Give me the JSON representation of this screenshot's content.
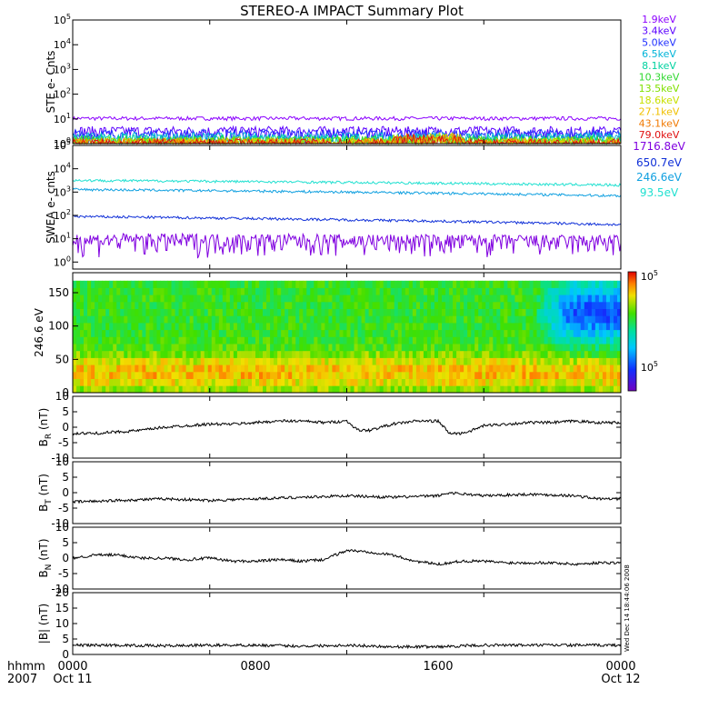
{
  "title": "STEREO-A IMPACT Summary Plot",
  "timestamp": "Wed Dec 14 18:44:06 2008",
  "time_axis": {
    "row_label_1": "hhmm",
    "row_label_2": "2007",
    "ticks": [
      {
        "time": "0000",
        "date": "Oct 11"
      },
      {
        "time": "0800",
        "date": ""
      },
      {
        "time": "1600",
        "date": ""
      },
      {
        "time": "0000",
        "date": "Oct 12"
      }
    ]
  },
  "colors": {
    "ste": [
      "#8b00ff",
      "#5a00ff",
      "#2030ff",
      "#00b4d8",
      "#00d2a0",
      "#30d830",
      "#80e000",
      "#c8e000",
      "#f0c000",
      "#f07800",
      "#e01010"
    ],
    "swea": [
      "#8000e0",
      "#1030d8",
      "#10a0e0",
      "#20e0d0"
    ]
  },
  "chart_data": [
    {
      "type": "line",
      "ylabel": "STE e- Cnts",
      "yscale": "log",
      "ylim": [
        1,
        100000
      ],
      "yticks": [
        {
          "v": 1,
          "base": "10",
          "exp": "0"
        },
        {
          "v": 10,
          "base": "10",
          "exp": "1"
        },
        {
          "v": 100,
          "base": "10",
          "exp": "2"
        },
        {
          "v": 1000,
          "base": "10",
          "exp": "3"
        },
        {
          "v": 10000,
          "base": "10",
          "exp": "4"
        },
        {
          "v": 100000,
          "base": "10",
          "exp": "5"
        }
      ],
      "x_hours": [
        0,
        24
      ],
      "series": [
        {
          "name": "1.9keV",
          "level": 10.5
        },
        {
          "name": "3.4keV",
          "level": 3.2
        },
        {
          "name": "5.0keV",
          "level": 2.4
        },
        {
          "name": "6.5keV",
          "level": 1.8
        },
        {
          "name": "8.1keV",
          "level": 1.5
        },
        {
          "name": "10.3keV",
          "level": 1.3
        },
        {
          "name": "13.5keV",
          "level": 1.2
        },
        {
          "name": "18.6keV",
          "level": 1.1
        },
        {
          "name": "27.1keV",
          "level": 1.05
        },
        {
          "name": "43.1keV",
          "level": 1.0
        },
        {
          "name": "79.0keV",
          "level": 1.0
        }
      ]
    },
    {
      "type": "line",
      "ylabel": "SWEA e- cnts",
      "yscale": "log",
      "ylim": [
        0.5,
        100000
      ],
      "yticks": [
        {
          "v": 1,
          "base": "10",
          "exp": "0"
        },
        {
          "v": 10,
          "base": "10",
          "exp": "1"
        },
        {
          "v": 100,
          "base": "10",
          "exp": "2"
        },
        {
          "v": 1000,
          "base": "10",
          "exp": "3"
        },
        {
          "v": 10000,
          "base": "10",
          "exp": "4"
        },
        {
          "v": 100000,
          "base": "10",
          "exp": "5"
        }
      ],
      "x_hours": [
        0,
        24
      ],
      "series": [
        {
          "name": "1716.8eV",
          "start": 6,
          "end": 5
        },
        {
          "name": "650.7eV",
          "start": 90,
          "end": 40
        },
        {
          "name": "246.6eV",
          "start": 1300,
          "end": 700
        },
        {
          "name": "93.5eV",
          "start": 3200,
          "end": 2000
        }
      ]
    },
    {
      "type": "heatmap",
      "ylabel": "246.6 eV",
      "ylim": [
        0,
        180
      ],
      "yticks": [
        0,
        50,
        100,
        150
      ],
      "colorbar_labels": [
        {
          "base": "10",
          "exp": "5"
        },
        {
          "base": "10",
          "exp": "5"
        }
      ]
    },
    {
      "type": "line",
      "ylabel_main": "B",
      "ylabel_sub": "R",
      "ylabel_unit": " (nT)",
      "ylim": [
        -10,
        10
      ],
      "yticks": [
        -10,
        -5,
        0,
        5,
        10
      ],
      "x": [
        0,
        1,
        2,
        3,
        4,
        5,
        6,
        7,
        8,
        9,
        10,
        11,
        12,
        12.5,
        13,
        14,
        15,
        16,
        16.5,
        17,
        17.5,
        18,
        19,
        20,
        21,
        22,
        23,
        24
      ],
      "values": [
        -2,
        -2,
        -1.5,
        -1,
        0,
        0.5,
        1,
        1,
        1.5,
        2,
        2,
        1.5,
        2,
        -1,
        -1,
        1,
        2,
        2,
        -2,
        -2,
        -1,
        0.5,
        1,
        1.5,
        1.5,
        2,
        1.5,
        1.5
      ]
    },
    {
      "type": "line",
      "ylabel_main": "B",
      "ylabel_sub": "T",
      "ylabel_unit": " (nT)",
      "ylim": [
        -10,
        10
      ],
      "yticks": [
        -10,
        -5,
        0,
        5,
        10
      ],
      "x": [
        0,
        2,
        4,
        6,
        8,
        10,
        12,
        14,
        16,
        16.5,
        18,
        20,
        22,
        23,
        24
      ],
      "values": [
        -3,
        -2.5,
        -2,
        -2.5,
        -2,
        -1.5,
        -1,
        -1.5,
        -1,
        0,
        -1,
        -0.5,
        -1,
        -2,
        -2
      ]
    },
    {
      "type": "line",
      "ylabel_main": "B",
      "ylabel_sub": "N",
      "ylabel_unit": " (nT)",
      "ylim": [
        -10,
        10
      ],
      "yticks": [
        -10,
        -5,
        0,
        5,
        10
      ],
      "x": [
        0,
        1,
        2,
        3,
        4,
        5,
        6,
        7,
        8,
        9,
        10,
        11,
        12,
        13,
        14,
        15,
        16,
        17,
        18,
        19,
        20,
        21,
        22,
        23,
        24
      ],
      "values": [
        0,
        1,
        1,
        0,
        0,
        -0.5,
        0,
        -1,
        -1,
        -0.5,
        -1,
        -0.5,
        2.5,
        2,
        1,
        -1,
        -2,
        -1,
        -1,
        -1.5,
        -1.5,
        -1.5,
        -2,
        -1.5,
        -1.5
      ]
    },
    {
      "type": "line",
      "ylabel": "|B| (nT)",
      "ylim": [
        0,
        20
      ],
      "yticks": [
        0,
        5,
        10,
        15,
        20
      ],
      "x": [
        0,
        2,
        4,
        6,
        8,
        10,
        12,
        14,
        16,
        18,
        20,
        22,
        24
      ],
      "values": [
        3,
        3,
        2.8,
        3,
        3,
        2.7,
        3,
        2.5,
        2.5,
        3,
        3,
        3,
        3
      ]
    }
  ]
}
